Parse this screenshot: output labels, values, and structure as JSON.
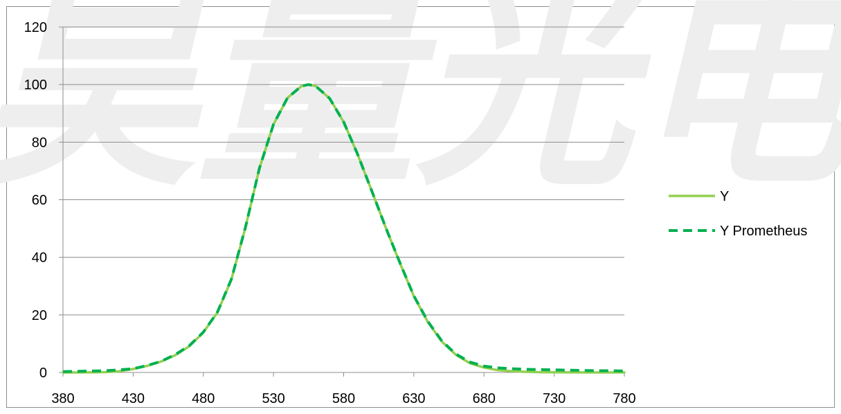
{
  "colors": {
    "y_series": "#92d050",
    "y_prometheus_series": "#00b050",
    "gridline": "#8c8c8c",
    "watermark": "#eeeeee"
  },
  "watermark_text": "昊量光电",
  "chart_data": {
    "type": "line",
    "title": "",
    "xlabel": "",
    "ylabel": "",
    "xlim": [
      380,
      780
    ],
    "ylim": [
      0,
      120
    ],
    "x_ticks": [
      380,
      430,
      480,
      530,
      580,
      630,
      680,
      730,
      780
    ],
    "y_ticks": [
      0,
      20,
      40,
      60,
      80,
      100,
      120
    ],
    "x_tick_labels": [
      "380",
      "430",
      "480",
      "530",
      "580",
      "630",
      "680",
      "730",
      "780"
    ],
    "y_tick_labels": [
      "0",
      "20",
      "40",
      "60",
      "80",
      "100",
      "120"
    ],
    "grid": "horizontal",
    "legend_position": "right",
    "x": [
      380,
      390,
      400,
      410,
      420,
      430,
      440,
      450,
      460,
      470,
      480,
      490,
      500,
      510,
      520,
      530,
      540,
      550,
      555,
      560,
      570,
      580,
      590,
      600,
      610,
      620,
      630,
      640,
      650,
      660,
      670,
      680,
      690,
      700,
      710,
      720,
      730,
      740,
      750,
      760,
      770,
      780
    ],
    "series": [
      {
        "name": "Y",
        "style": "solid",
        "values": [
          0.0,
          0.01,
          0.04,
          0.12,
          0.4,
          1.2,
          2.3,
          3.8,
          6.0,
          9.1,
          13.9,
          20.8,
          32.3,
          50.3,
          71.0,
          86.2,
          95.4,
          99.5,
          100.0,
          99.5,
          95.2,
          87.0,
          75.7,
          63.1,
          50.3,
          38.1,
          26.5,
          17.5,
          10.7,
          6.1,
          3.2,
          1.7,
          0.8,
          0.41,
          0.21,
          0.1,
          0.05,
          0.02,
          0.01,
          0.01,
          0.0,
          0.0
        ]
      },
      {
        "name": "Y Prometheus",
        "style": "dashed",
        "values": [
          0.3,
          0.4,
          0.5,
          0.6,
          0.9,
          1.3,
          2.4,
          3.9,
          6.2,
          9.3,
          14.0,
          20.9,
          32.4,
          50.4,
          71.0,
          86.2,
          95.4,
          99.5,
          100.0,
          99.5,
          95.2,
          87.0,
          75.7,
          63.1,
          50.3,
          38.2,
          26.6,
          17.7,
          10.9,
          6.4,
          3.6,
          2.2,
          1.6,
          1.3,
          1.1,
          1.0,
          0.9,
          0.8,
          0.7,
          0.6,
          0.6,
          0.5
        ]
      }
    ]
  }
}
